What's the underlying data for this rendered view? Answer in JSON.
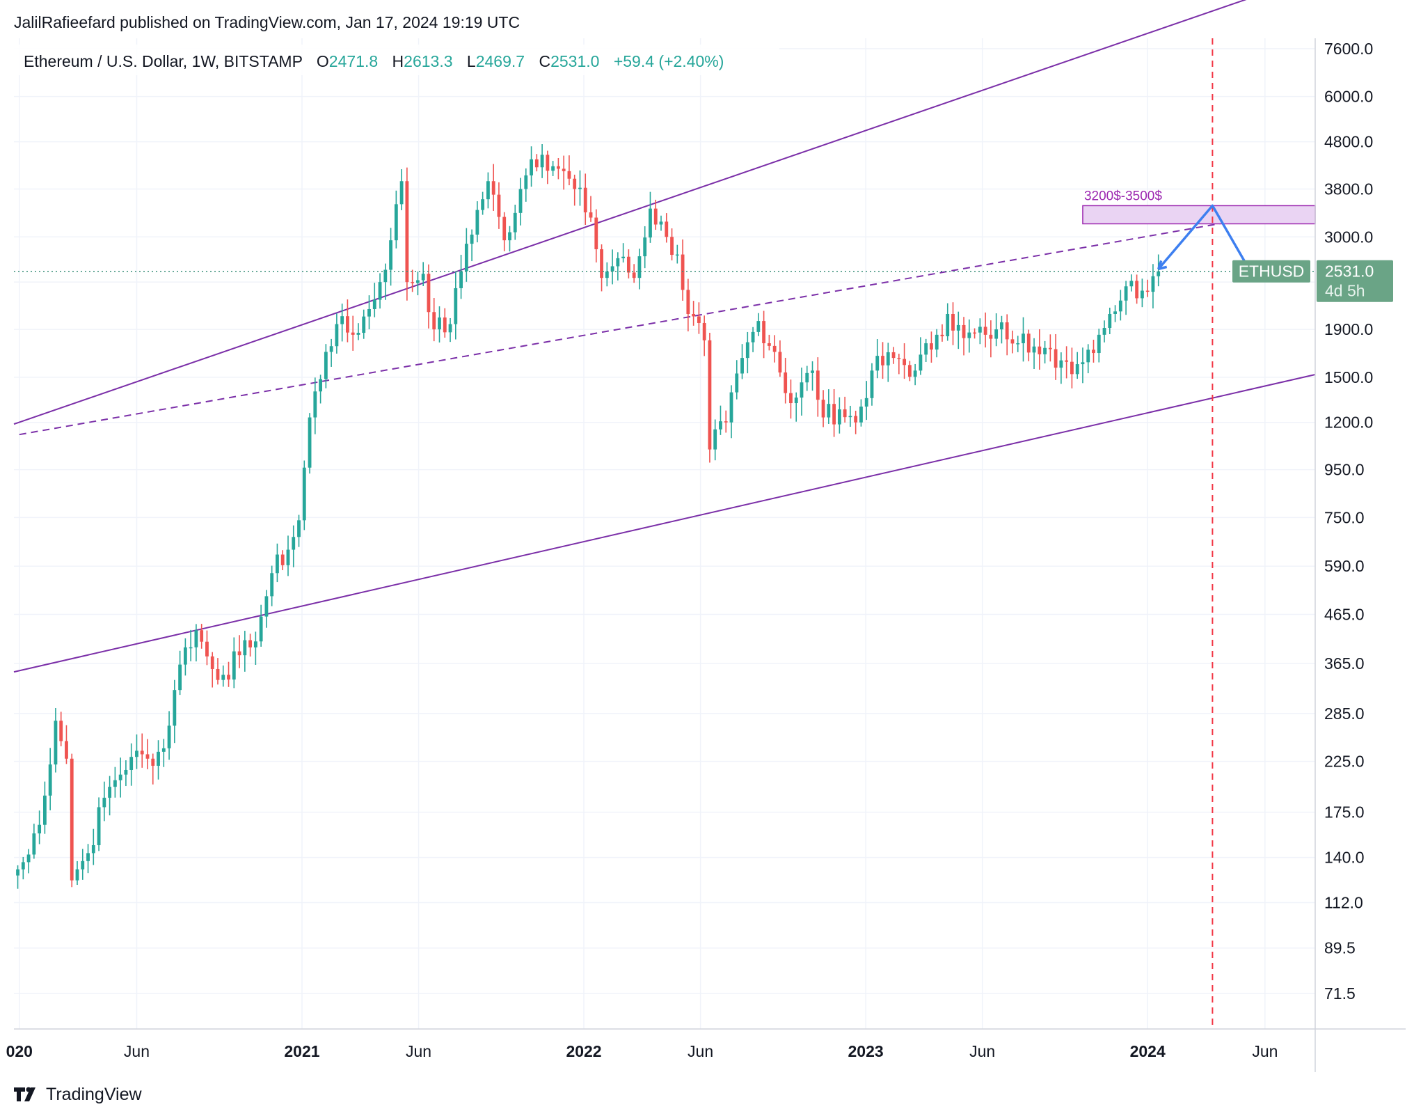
{
  "publisher": "JalilRafieefard published on TradingView.com, Jan 17, 2024 19:19 UTC",
  "legend": {
    "symbol": "Ethereum / U.S. Dollar, 1W, BITSTAMP",
    "o_label": "O",
    "o": "2471.8",
    "h_label": "H",
    "h": "2613.3",
    "l_label": "L",
    "l": "2469.7",
    "c_label": "C",
    "c": "2531.0",
    "change": "+59.4 (+2.40%)"
  },
  "price_tag": {
    "ticker": "ETHUSD",
    "price": "2531.0",
    "countdown": "4d 5h"
  },
  "zone_label": "3200$-3500$",
  "footer_brand": "TradingView",
  "colors": {
    "up": "#26a69a",
    "down": "#ef5350",
    "channel": "#7b2fa8",
    "projection": "#3d7ff0",
    "zone_fill": "#ead4f3",
    "marker": "#f23645",
    "price_tag_bg": "#6aa486"
  },
  "chart_data": {
    "type": "candlestick",
    "interval": "1W",
    "scale": "log",
    "ylim": [
      60,
      8000
    ],
    "grid": true,
    "y_ticks": [
      7600,
      6000,
      4800,
      3800,
      3000,
      2400,
      1900,
      1500,
      1200,
      950,
      750,
      590,
      465,
      365,
      285,
      225,
      175,
      140,
      112,
      89.5,
      71.5
    ],
    "y_tick_labels": [
      "7600.0",
      "6000.0",
      "4800.0",
      "3800.0",
      "3000.0",
      "",
      "1900.0",
      "1500.0",
      "1200.0",
      "950.0",
      "750.0",
      "590.0",
      "465.0",
      "365.0",
      "285.0",
      "225.0",
      "175.0",
      "140.0",
      "112.0",
      "89.5",
      "71.5"
    ],
    "x_ticks": [
      {
        "date": "2020-01-01",
        "label": "020",
        "bold": true
      },
      {
        "date": "2020-06-01",
        "label": "Jun",
        "bold": false
      },
      {
        "date": "2021-01-01",
        "label": "2021",
        "bold": true
      },
      {
        "date": "2021-06-01",
        "label": "Jun",
        "bold": false
      },
      {
        "date": "2022-01-01",
        "label": "2022",
        "bold": true
      },
      {
        "date": "2022-06-01",
        "label": "Jun",
        "bold": false
      },
      {
        "date": "2023-01-01",
        "label": "2023",
        "bold": true
      },
      {
        "date": "2023-06-01",
        "label": "Jun",
        "bold": false
      },
      {
        "date": "2024-01-01",
        "label": "2024",
        "bold": true
      },
      {
        "date": "2024-06-01",
        "label": "Jun",
        "bold": false
      }
    ],
    "x_range": [
      "2019-12-25",
      "2024-08-05"
    ],
    "series_anchor_closes": [
      [
        "2019-12-30",
        132
      ],
      [
        "2020-01-13",
        142
      ],
      [
        "2020-02-03",
        190
      ],
      [
        "2020-02-17",
        275
      ],
      [
        "2020-03-02",
        228
      ],
      [
        "2020-03-09",
        125
      ],
      [
        "2020-03-16",
        132
      ],
      [
        "2020-03-30",
        143
      ],
      [
        "2020-04-20",
        188
      ],
      [
        "2020-05-04",
        205
      ],
      [
        "2020-05-25",
        230
      ],
      [
        "2020-06-15",
        228
      ],
      [
        "2020-07-06",
        240
      ],
      [
        "2020-07-20",
        320
      ],
      [
        "2020-08-03",
        395
      ],
      [
        "2020-08-17",
        430
      ],
      [
        "2020-09-07",
        355
      ],
      [
        "2020-09-21",
        345
      ],
      [
        "2020-10-12",
        380
      ],
      [
        "2020-10-26",
        395
      ],
      [
        "2020-11-09",
        460
      ],
      [
        "2020-11-23",
        570
      ],
      [
        "2020-12-14",
        640
      ],
      [
        "2020-12-28",
        740
      ],
      [
        "2021-01-11",
        1230
      ],
      [
        "2021-02-01",
        1700
      ],
      [
        "2021-02-15",
        1950
      ],
      [
        "2021-03-08",
        1850
      ],
      [
        "2021-03-29",
        2100
      ],
      [
        "2021-04-12",
        2400
      ],
      [
        "2021-04-26",
        2950
      ],
      [
        "2021-05-10",
        3950
      ],
      [
        "2021-05-17",
        2400
      ],
      [
        "2021-06-07",
        2500
      ],
      [
        "2021-06-21",
        1900
      ],
      [
        "2021-07-12",
        1950
      ],
      [
        "2021-08-02",
        2900
      ],
      [
        "2021-08-30",
        3950
      ],
      [
        "2021-09-20",
        2950
      ],
      [
        "2021-10-11",
        3800
      ],
      [
        "2021-10-25",
        4400
      ],
      [
        "2021-11-08",
        4500
      ],
      [
        "2021-11-29",
        4200
      ],
      [
        "2021-12-20",
        3800
      ],
      [
        "2022-01-10",
        3300
      ],
      [
        "2022-01-24",
        2450
      ],
      [
        "2022-02-14",
        2700
      ],
      [
        "2022-03-07",
        2450
      ],
      [
        "2022-03-28",
        3450
      ],
      [
        "2022-04-18",
        3000
      ],
      [
        "2022-05-02",
        2750
      ],
      [
        "2022-05-16",
        2050
      ],
      [
        "2022-06-06",
        1800
      ],
      [
        "2022-06-13",
        1050
      ],
      [
        "2022-07-04",
        1200
      ],
      [
        "2022-07-25",
        1650
      ],
      [
        "2022-08-15",
        1980
      ],
      [
        "2022-09-05",
        1700
      ],
      [
        "2022-09-26",
        1320
      ],
      [
        "2022-10-24",
        1550
      ],
      [
        "2022-11-07",
        1230
      ],
      [
        "2022-11-28",
        1280
      ],
      [
        "2022-12-19",
        1200
      ],
      [
        "2023-01-09",
        1550
      ],
      [
        "2023-02-06",
        1650
      ],
      [
        "2023-03-06",
        1550
      ],
      [
        "2023-04-03",
        1850
      ],
      [
        "2023-04-17",
        2050
      ],
      [
        "2023-05-08",
        1820
      ],
      [
        "2023-06-05",
        1850
      ],
      [
        "2023-06-19",
        1900
      ],
      [
        "2023-07-24",
        1860
      ],
      [
        "2023-08-14",
        1680
      ],
      [
        "2023-09-11",
        1630
      ],
      [
        "2023-10-02",
        1600
      ],
      [
        "2023-10-30",
        1850
      ],
      [
        "2023-11-13",
        2050
      ],
      [
        "2023-12-04",
        2350
      ],
      [
        "2023-12-25",
        2300
      ],
      [
        "2024-01-08",
        2470
      ],
      [
        "2024-01-15",
        2531
      ]
    ],
    "channel_upper": [
      [
        "2019-12-25",
        1190
      ],
      [
        "2024-08-05",
        10900
      ]
    ],
    "channel_lower": [
      [
        "2019-12-25",
        350
      ],
      [
        "2024-08-05",
        1520
      ]
    ],
    "channel_mid_dashed": [
      [
        "2020-01-01",
        1130
      ],
      [
        "2024-08-05",
        3480
      ]
    ],
    "target_zone": {
      "from": "2023-10-09",
      "to": "2024-08-05",
      "low": 3200,
      "high": 3500
    },
    "projection_path": [
      [
        "2024-01-15",
        2560
      ],
      [
        "2024-03-25",
        3500
      ],
      [
        "2024-05-13",
        2531
      ]
    ],
    "vertical_marker_date": "2024-03-25",
    "last_price": 2531.0
  }
}
